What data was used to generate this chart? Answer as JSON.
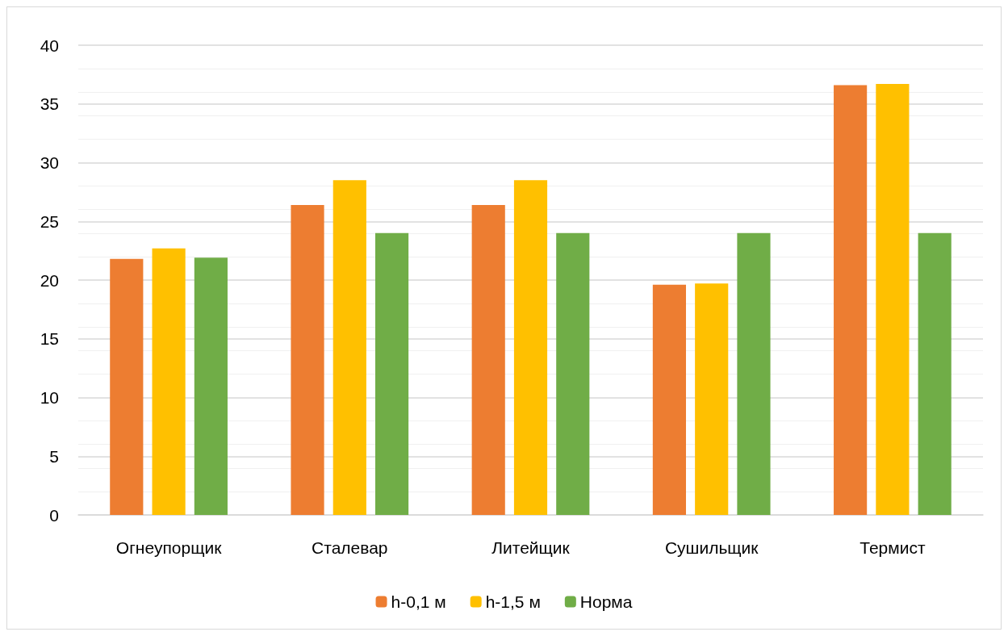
{
  "chart_data": {
    "type": "bar",
    "categories": [
      "Огнеупорщик",
      "Сталевар",
      "Литейщик",
      "Сушильщик",
      "Термист"
    ],
    "series": [
      {
        "name": "h-0,1 м",
        "color": "#ed7d31",
        "values": [
          21.8,
          26.4,
          26.4,
          19.6,
          36.6
        ]
      },
      {
        "name": "h-1,5 м",
        "color": "#ffc000",
        "values": [
          22.7,
          28.5,
          28.5,
          19.7,
          36.7
        ]
      },
      {
        "name": "Норма",
        "color": "#70ad47",
        "values": [
          21.9,
          24,
          24,
          24,
          24
        ]
      }
    ],
    "ylim": [
      0,
      40
    ],
    "yticks": [
      0,
      5,
      10,
      15,
      20,
      25,
      30,
      35,
      40
    ],
    "grid": "y",
    "legend": "bottom"
  }
}
